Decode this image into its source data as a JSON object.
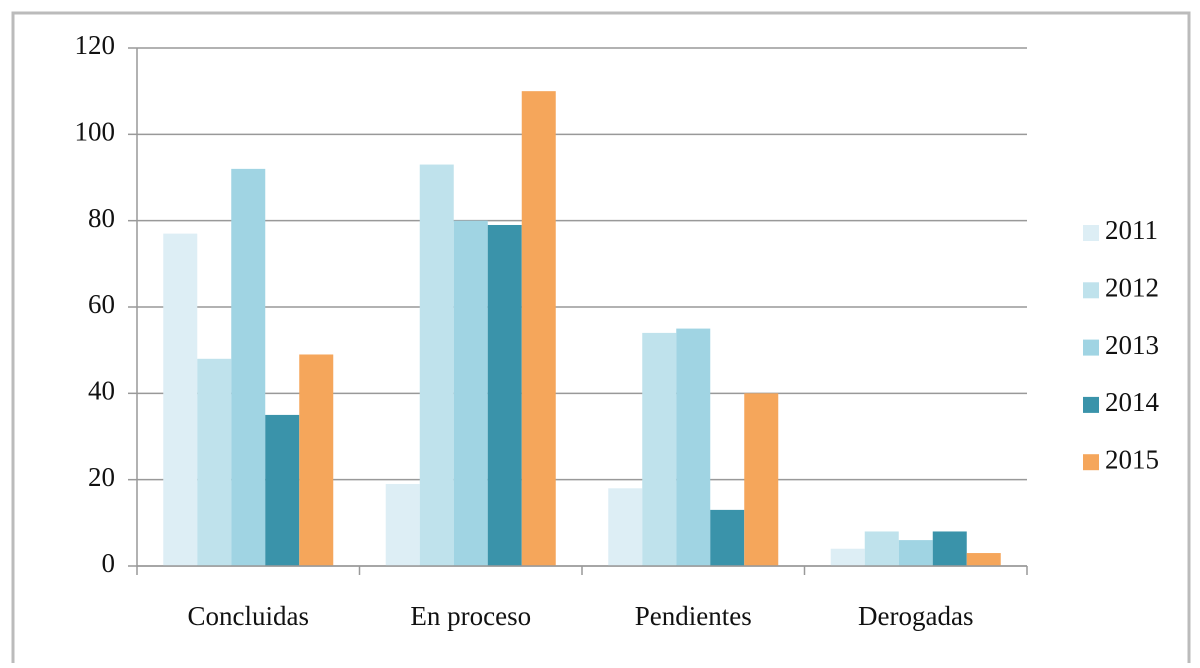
{
  "chart_data": {
    "type": "bar",
    "categories": [
      "Concluidas",
      "En proceso",
      "Pendientes",
      "Derogadas"
    ],
    "series": [
      {
        "name": "2011",
        "color": "#ddeef5",
        "values": [
          77,
          19,
          18,
          4
        ]
      },
      {
        "name": "2012",
        "color": "#bfe2ec",
        "values": [
          48,
          93,
          54,
          8
        ]
      },
      {
        "name": "2013",
        "color": "#a0d4e3",
        "values": [
          92,
          80,
          55,
          6
        ]
      },
      {
        "name": "2014",
        "color": "#3a93aa",
        "values": [
          35,
          79,
          13,
          8
        ]
      },
      {
        "name": "2015",
        "color": "#f5a65b",
        "values": [
          49,
          110,
          40,
          3
        ]
      }
    ],
    "ylim": [
      0,
      120
    ],
    "yticks": [
      0,
      20,
      40,
      60,
      80,
      100,
      120
    ],
    "grid": true,
    "legend": "right"
  }
}
